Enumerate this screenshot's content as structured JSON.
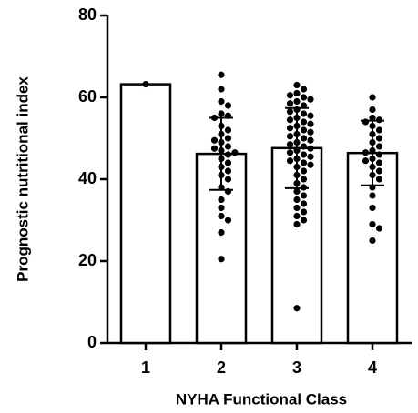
{
  "chart_data": {
    "type": "bar",
    "x_label": "NYHA Functional Class",
    "y_label": "Prognostic nutritional index",
    "categories": [
      "1",
      "2",
      "3",
      "4"
    ],
    "values": [
      63.2,
      46.2,
      47.6,
      46.4
    ],
    "errors": [
      null,
      8.8,
      9.8,
      7.9
    ],
    "color": "#ffffff",
    "points": [
      [
        63.2
      ],
      [
        65.5,
        62,
        59,
        58,
        56,
        55.5,
        55,
        53,
        52,
        51,
        50,
        49.5,
        49,
        48,
        47.5,
        47,
        46.5,
        46,
        45,
        44,
        43,
        42,
        41,
        40,
        38,
        37,
        35,
        33,
        31,
        30,
        27,
        20.5
      ],
      [
        63,
        62,
        61,
        60.5,
        60,
        59.5,
        59,
        58.5,
        58,
        57,
        56.5,
        56,
        55.5,
        55,
        54.5,
        54,
        53.5,
        53,
        52.5,
        52,
        51.5,
        51,
        50.5,
        50,
        49.5,
        49,
        48.5,
        48,
        47.5,
        47,
        46.5,
        46,
        45.5,
        45,
        44.5,
        44,
        43.5,
        43,
        42,
        41,
        40,
        39,
        38,
        37,
        36,
        35,
        34,
        33,
        32,
        31,
        30,
        29,
        8.5
      ],
      [
        60,
        57,
        55,
        54.5,
        54,
        53,
        52,
        51,
        50,
        49,
        48,
        47,
        46.5,
        46,
        45,
        44.5,
        44,
        43,
        42,
        41,
        40,
        38,
        36,
        33,
        29,
        28,
        25
      ]
    ],
    "ylim": [
      0,
      80
    ],
    "yticks": [
      0,
      20,
      40,
      60,
      80
    ],
    "grid": false
  }
}
